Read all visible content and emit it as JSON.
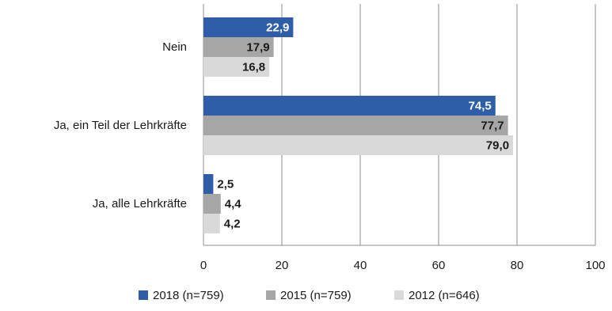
{
  "chart_data": {
    "type": "bar",
    "orientation": "horizontal",
    "categories": [
      "Nein",
      "Ja, ein Teil der Lehrkräfte",
      "Ja, alle Lehrkräfte"
    ],
    "series": [
      {
        "name": "2018 (n=759)",
        "values": [
          22.9,
          74.5,
          2.5
        ],
        "labels": [
          "22,9",
          "74,5",
          "2,5"
        ],
        "color": "#2e5ea8",
        "label_color": "#ffffff"
      },
      {
        "name": "2015 (n=759)",
        "values": [
          17.9,
          77.7,
          4.4
        ],
        "labels": [
          "17,9",
          "77,7",
          "4,4"
        ],
        "color": "#a6a6a6",
        "label_color": "#1a1a1a"
      },
      {
        "name": "2012 (n=646)",
        "values": [
          16.8,
          79.0,
          4.2
        ],
        "labels": [
          "16,8",
          "79,0",
          "4,2"
        ],
        "color": "#d9d9d9",
        "label_color": "#1a1a1a"
      }
    ],
    "xlim": [
      0,
      100
    ],
    "ticks": [
      0,
      20,
      40,
      60,
      80,
      100
    ],
    "tick_labels": [
      "0",
      "20",
      "40",
      "60",
      "80",
      "100"
    ],
    "grid": true,
    "legend": "bottom",
    "title": "",
    "xlabel": "",
    "ylabel": ""
  }
}
